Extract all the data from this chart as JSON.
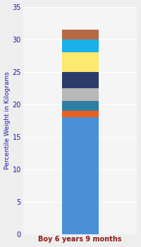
{
  "category": "Boy 6 years 9 months",
  "segments": [
    {
      "value": 18.0,
      "color": "#4a90d9"
    },
    {
      "value": 1.0,
      "color": "#e8601c"
    },
    {
      "value": 1.5,
      "color": "#2e7ea6"
    },
    {
      "value": 2.0,
      "color": "#b8b8b8"
    },
    {
      "value": 2.5,
      "color": "#2b3c6b"
    },
    {
      "value": 3.0,
      "color": "#fde870"
    },
    {
      "value": 2.0,
      "color": "#1ab0e8"
    },
    {
      "value": 1.5,
      "color": "#b56a45"
    }
  ],
  "ylabel": "Percentile Weight in Kilograms",
  "ylim": [
    0,
    35
  ],
  "yticks": [
    0,
    5,
    10,
    15,
    20,
    25,
    30,
    35
  ],
  "background_color": "#eeeeee",
  "plot_background": "#f5f5f5",
  "xlabel_color": "#8B1A1A",
  "ylabel_color": "#1a1aaa",
  "tick_color": "#1a1aaa",
  "bar_width": 0.45
}
